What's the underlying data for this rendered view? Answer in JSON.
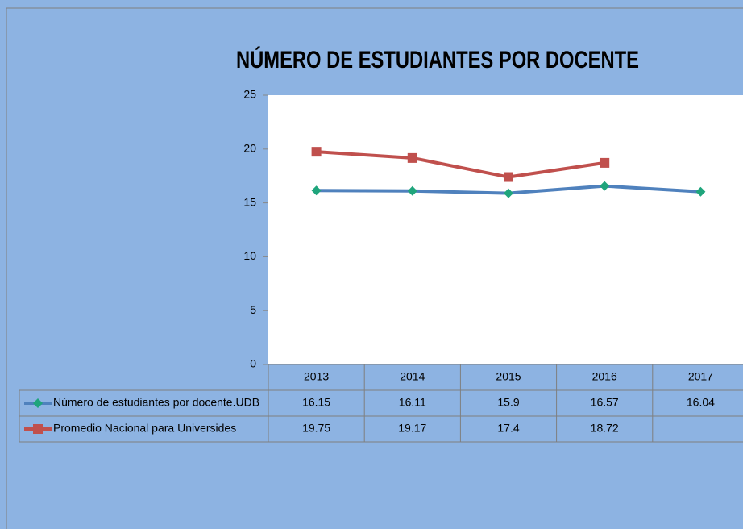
{
  "chart_data": {
    "type": "line",
    "title": "NÚMERO DE ESTUDIANTES POR DOCENTE",
    "categories": [
      "2013",
      "2014",
      "2015",
      "2016",
      "2017"
    ],
    "series": [
      {
        "name": "Número de estudiantes por docente.UDB",
        "color": "#4f81bd",
        "marker": "diamond",
        "marker_color": "#1fa57c",
        "values": [
          16.15,
          16.11,
          15.9,
          16.57,
          16.04
        ]
      },
      {
        "name": "Promedio Nacional para Universides",
        "color": "#c0504d",
        "marker": "square",
        "marker_color": "#c0504d",
        "values": [
          19.75,
          19.17,
          17.4,
          18.72,
          null
        ]
      }
    ],
    "ylim": [
      0,
      25
    ],
    "yticks": [
      0,
      5,
      10,
      15,
      20,
      25
    ],
    "grid": false,
    "data_table": true
  }
}
